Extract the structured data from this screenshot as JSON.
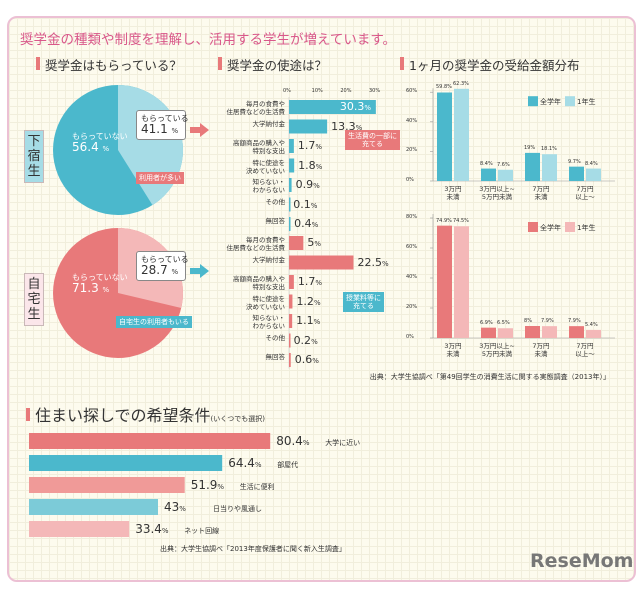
{
  "title": "奨学金の種類や制度を理解し、活用する学生が増えています。",
  "colors": {
    "blue": "#4bb8cc",
    "blue_light": "#a6dce6",
    "red": "#e8797a",
    "red_light": "#f4b8b8",
    "accent": "#d9588a"
  },
  "chart_data": [
    {
      "id": "pie_boarding",
      "type": "pie",
      "title": "奨学金はもらっている？",
      "group_label": "下宿生",
      "slices": [
        {
          "label": "もらっている",
          "value": 41.1
        },
        {
          "label": "もらっていない",
          "value": 56.4
        }
      ],
      "callout": "利用者が多い",
      "unit": "%"
    },
    {
      "id": "pie_home",
      "type": "pie",
      "group_label": "自宅生",
      "slices": [
        {
          "label": "もらっている",
          "value": 28.7
        },
        {
          "label": "もらっていない",
          "value": 71.3
        }
      ],
      "callout": "自宅生の利用者もいる",
      "unit": "%"
    },
    {
      "id": "usage_boarding",
      "type": "bar",
      "orientation": "horizontal",
      "title": "奨学金の使途は？",
      "categories": [
        "毎月の食費や\n住居費などの生活費",
        "大学納付金",
        "高額商品の購入や\n特別な支出",
        "特に使途を\n決めていない",
        "知らない・\nわからない",
        "その他",
        "無回答"
      ],
      "values": [
        30.3,
        13.3,
        1.7,
        1.8,
        0.9,
        0.1,
        0.4
      ],
      "xticks": [
        "0%",
        "10%",
        "20%",
        "30%"
      ],
      "xlim": [
        0,
        30
      ],
      "callout": "生活費の一部に\n充てる"
    },
    {
      "id": "usage_home",
      "type": "bar",
      "orientation": "horizontal",
      "categories": [
        "毎月の食費や\n住居費などの生活費",
        "大学納付金",
        "高額商品の購入や\n特別な支出",
        "特に使途を\n決めていない",
        "知らない・\nわからない",
        "その他",
        "無回答"
      ],
      "values": [
        5.0,
        22.5,
        1.7,
        1.2,
        1.1,
        0.2,
        0.6
      ],
      "xlim": [
        0,
        30
      ],
      "callout": "授業料等に\n充てる"
    },
    {
      "id": "amount_boarding",
      "type": "bar",
      "title": "1ヶ月の奨学金の受給金額分布",
      "categories": [
        "3万円\n未満",
        "3万円以上~\n5万円未満",
        "7万円\n未満",
        "7万円\n以上～"
      ],
      "series": [
        {
          "name": "全学年",
          "values": [
            59.8,
            8.4,
            19.0,
            9.7
          ]
        },
        {
          "name": "1年生",
          "values": [
            62.3,
            7.6,
            18.1,
            8.4
          ]
        }
      ],
      "ylim": [
        0,
        60
      ],
      "yticks": [
        "0%",
        "20%",
        "40%",
        "60%"
      ],
      "legend": "top-right"
    },
    {
      "id": "amount_home",
      "type": "bar",
      "categories": [
        "3万円\n未満",
        "3万円以上~\n5万円未満",
        "7万円\n未満",
        "7万円\n以上～"
      ],
      "series": [
        {
          "name": "全学年",
          "values": [
            74.9,
            6.9,
            8.0,
            7.9
          ]
        },
        {
          "name": "1年生",
          "values": [
            74.5,
            6.5,
            7.9,
            5.4
          ]
        }
      ],
      "ylim": [
        0,
        80
      ],
      "yticks": [
        "0%",
        "20%",
        "40%",
        "60%",
        "80%"
      ],
      "legend": "top-right"
    },
    {
      "id": "housing",
      "type": "bar",
      "orientation": "horizontal",
      "title": "住まい探しでの希望条件",
      "subtitle": "(いくつでも選択)",
      "categories": [
        "大学に近い",
        "部屋代",
        "生活に便利",
        "日当りや風通し",
        "ネット回線"
      ],
      "values": [
        80.4,
        64.4,
        51.9,
        43.0,
        33.4
      ]
    }
  ],
  "source1": "出典：大学生協調べ「第49回学生の消費生活に関する実態調査（2013年）」",
  "source2": "出典：大学生協調べ「2013年度保護者に聞く新入生調査」",
  "logo": "ReseMom"
}
